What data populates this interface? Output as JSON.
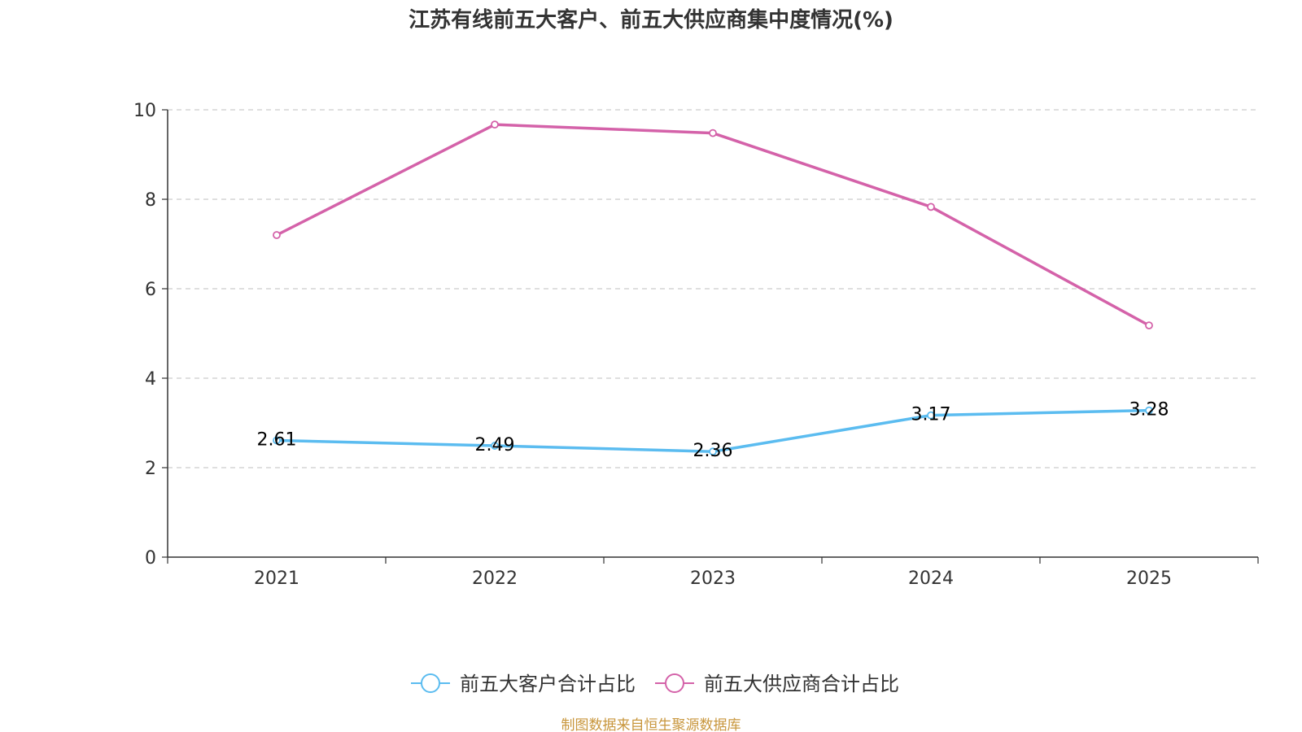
{
  "chart_data": {
    "type": "line",
    "title": "江苏有线前五大客户、前五大供应商集中度情况(%)",
    "categories": [
      "2021",
      "2022",
      "2023",
      "2024",
      "2025"
    ],
    "ylim": [
      0,
      10
    ],
    "yticks": [
      0,
      2,
      4,
      6,
      8,
      10
    ],
    "grid": true,
    "legend_position": "bottom-center",
    "series": [
      {
        "name": "前五大客户合计占比",
        "values": [
          2.61,
          2.49,
          2.36,
          3.17,
          3.28
        ],
        "labels": [
          "2.61",
          "2.49",
          "2.36",
          "3.17",
          "3.28"
        ],
        "color": "#5bbcf0",
        "show_labels": true
      },
      {
        "name": "前五大供应商合计占比",
        "values": [
          7.2,
          9.67,
          9.48,
          7.83,
          5.18
        ],
        "color": "#d462a9",
        "show_labels": false
      }
    ]
  },
  "source": "制图数据来自恒生聚源数据库",
  "colors": {
    "axis": "#333333",
    "grid": "#cccccc",
    "source": "#c8963c"
  }
}
